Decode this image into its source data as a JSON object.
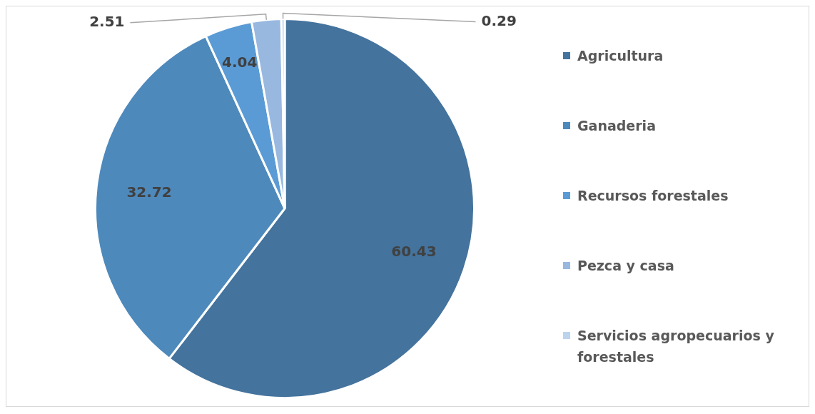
{
  "chart_data": {
    "type": "pie",
    "categories": [
      "Agricultura",
      "Ganaderia",
      "Recursos forestales",
      "Pezca y casa",
      "Servicios agropecuarios y forestales"
    ],
    "values": [
      60.43,
      32.72,
      4.04,
      2.51,
      0.29
    ],
    "colors": [
      "#44739d",
      "#4e89bc",
      "#5a9bd5",
      "#98b8e0",
      "#bcd3ec"
    ],
    "data_labels": true,
    "legend": "right"
  }
}
